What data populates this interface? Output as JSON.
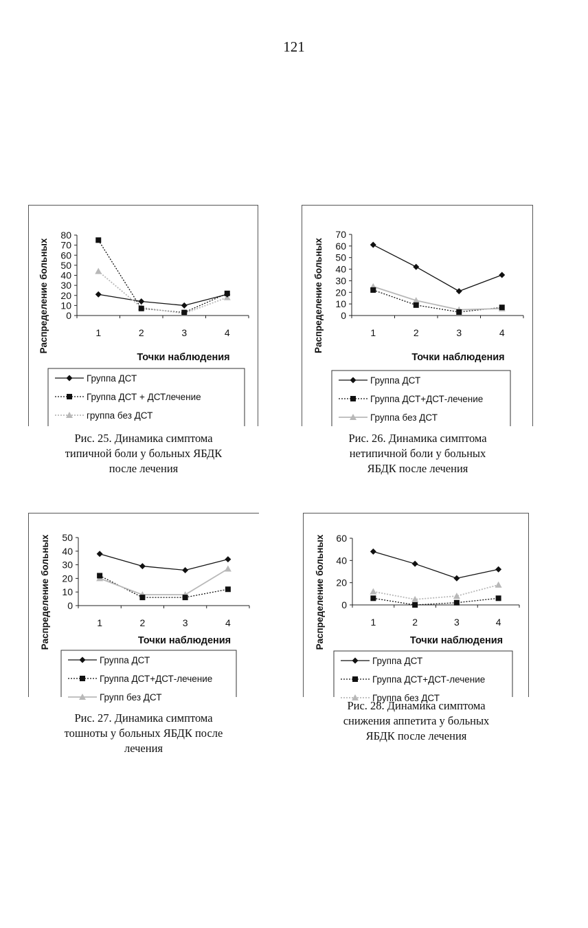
{
  "page": {
    "number": "121"
  },
  "figures": [
    {
      "caption": [
        "Рис. 25. Динамика симптома",
        "типичной боли у больных ЯБДК",
        "после лечения"
      ]
    },
    {
      "caption": [
        "Рис. 26. Динамика симптома",
        "нетипичной боли у больных",
        "ЯБДК после лечения"
      ]
    },
    {
      "caption": [
        "Рис. 27. Динамика симптома",
        "тошноты у больных ЯБДК после",
        "лечения"
      ]
    },
    {
      "caption": [
        "Рис. 28. Динамика симптома",
        "снижения аппетита у больных",
        "ЯБДК после лечения"
      ]
    }
  ],
  "chart_data": [
    {
      "type": "line",
      "x": [
        "1",
        "2",
        "3",
        "4"
      ],
      "xlabel": "Точки наблюдения",
      "ylabel": "Распределение больных",
      "ylim": [
        0,
        80
      ],
      "yticks": [
        0,
        10,
        20,
        30,
        40,
        50,
        60,
        70,
        80
      ],
      "legend_position": "bottom",
      "series": [
        {
          "name": "Группа ДСТ",
          "values": [
            21,
            14,
            10,
            21
          ],
          "color": "#111111",
          "marker": "diamond",
          "style": "solid"
        },
        {
          "name": "Группа ДСТ + ДСТлечение",
          "values": [
            75,
            7,
            3,
            22
          ],
          "color": "#111111",
          "marker": "square",
          "style": "dotted"
        },
        {
          "name": "группа без ДСТ",
          "values": [
            44,
            8,
            2,
            18
          ],
          "color": "#b8b8b8",
          "marker": "triangle",
          "style": "dotted"
        }
      ]
    },
    {
      "type": "line",
      "x": [
        "1",
        "2",
        "3",
        "4"
      ],
      "xlabel": "Точки наблюдения",
      "ylabel": "Распределение больных",
      "ylim": [
        0,
        70
      ],
      "yticks": [
        0,
        10,
        20,
        30,
        40,
        50,
        60,
        70
      ],
      "legend_position": "bottom",
      "series": [
        {
          "name": "Группа ДСТ",
          "values": [
            61,
            42,
            21,
            35
          ],
          "color": "#111111",
          "marker": "diamond",
          "style": "solid"
        },
        {
          "name": "Группа ДСТ+ДСТ-лечение",
          "values": [
            22,
            9,
            3,
            7
          ],
          "color": "#111111",
          "marker": "square",
          "style": "dotted"
        },
        {
          "name": "Группа без ДСТ",
          "values": [
            25,
            13,
            5,
            6
          ],
          "color": "#b8b8b8",
          "marker": "triangle",
          "style": "solid"
        }
      ]
    },
    {
      "type": "line",
      "x": [
        "1",
        "2",
        "3",
        "4"
      ],
      "xlabel": "Точки наблюдения",
      "ylabel": "Распределение больных",
      "ylim": [
        0,
        50
      ],
      "yticks": [
        0,
        10,
        20,
        30,
        40,
        50
      ],
      "legend_position": "bottom",
      "series": [
        {
          "name": "Группа ДСТ",
          "values": [
            38,
            29,
            26,
            34
          ],
          "color": "#111111",
          "marker": "diamond",
          "style": "solid"
        },
        {
          "name": "Группа ДСТ+ДСТ-лечение",
          "values": [
            22,
            6,
            6,
            12
          ],
          "color": "#111111",
          "marker": "square",
          "style": "dotted"
        },
        {
          "name": "Групп без ДСТ",
          "values": [
            20,
            8,
            8,
            27
          ],
          "color": "#b8b8b8",
          "marker": "triangle",
          "style": "solid"
        }
      ]
    },
    {
      "type": "line",
      "x": [
        "1",
        "2",
        "3",
        "4"
      ],
      "xlabel": "Точки наблюдения",
      "ylabel": "Распределение больных",
      "ylim": [
        0,
        60
      ],
      "yticks": [
        0,
        20,
        40,
        60
      ],
      "legend_position": "bottom",
      "series": [
        {
          "name": "Группа ДСТ",
          "values": [
            48,
            37,
            24,
            32
          ],
          "color": "#111111",
          "marker": "diamond",
          "style": "solid"
        },
        {
          "name": "Группа ДСТ+ДСТ-лечение",
          "values": [
            6,
            0,
            2,
            6
          ],
          "color": "#111111",
          "marker": "square",
          "style": "dotted"
        },
        {
          "name": "Группа без ДСТ",
          "values": [
            12,
            5,
            8,
            18
          ],
          "color": "#b8b8b8",
          "marker": "triangle",
          "style": "dotted"
        }
      ]
    }
  ]
}
